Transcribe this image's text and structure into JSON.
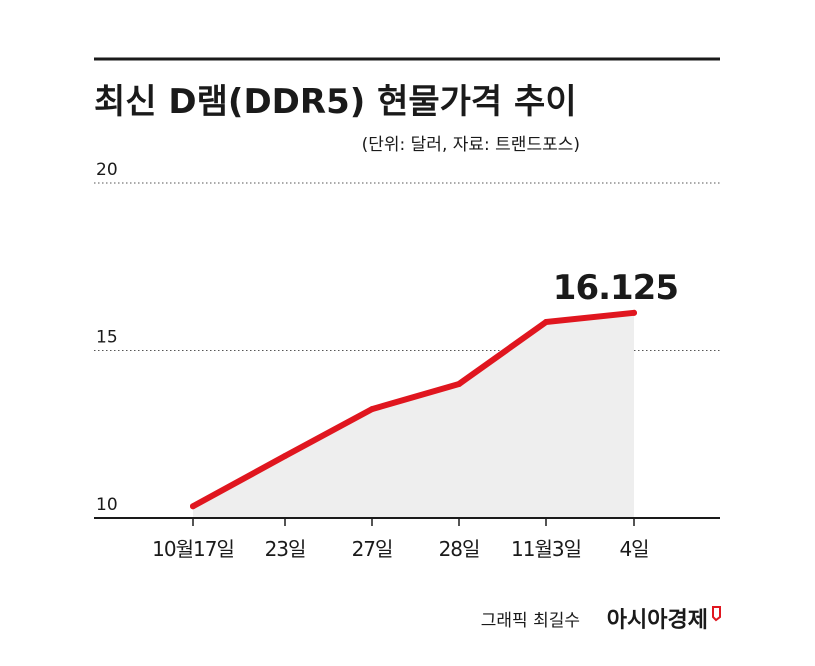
{
  "header": {
    "title": "최신 D램(DDR5) 현물가격 추이",
    "unit_note": "(단위: 달러, 자료: 트랜드포스)"
  },
  "footer": {
    "credit": "그래픽 최길수",
    "brand": "아시아경제"
  },
  "colors": {
    "line": "#e0161f",
    "area": "#eeeeee",
    "text": "#1a1a1a",
    "grid": "#555555",
    "brand_mark": "#e0161f"
  },
  "chart_data": {
    "type": "area",
    "title": "최신 D램(DDR5) 현물가격 추이",
    "subtitle": "(단위: 달러, 자료: 트랜드포스)",
    "categories": [
      "10월17일",
      "23일",
      "27일",
      "28일",
      "11월3일",
      "4일"
    ],
    "series": [
      {
        "values": [
          10.35,
          11.85,
          13.25,
          14.0,
          15.85,
          16.125
        ]
      }
    ],
    "yticks": [
      "10",
      "15",
      "20"
    ],
    "ylim": [
      10,
      20
    ],
    "grid": true,
    "annotation": "16.125"
  }
}
